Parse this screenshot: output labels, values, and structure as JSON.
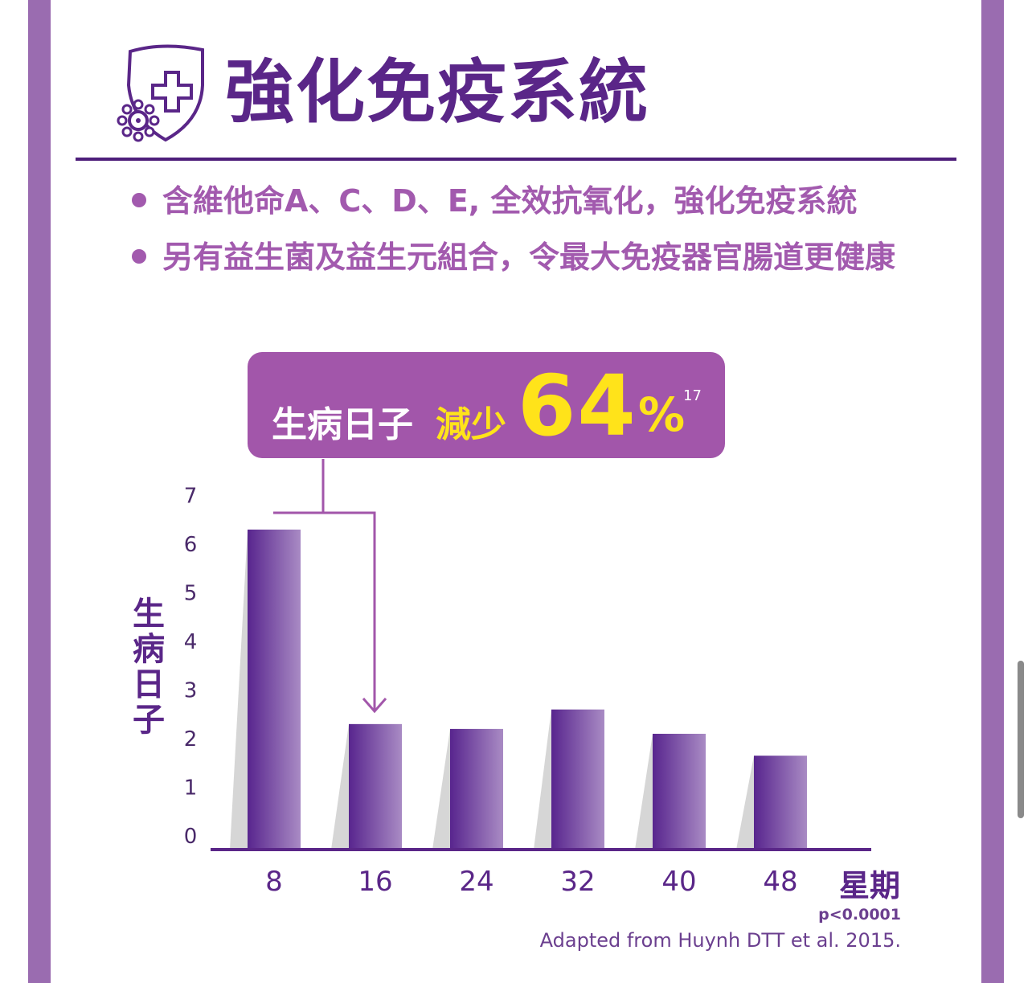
{
  "header": {
    "title": "強化免疫系統",
    "icon": "shield-virus-icon"
  },
  "bullets": [
    "含維他命A、C、D、E, 全效抗氧化，強化免疫系統",
    "另有益生菌及益生元組合，令最大免疫器官腸道更健康"
  ],
  "callout": {
    "text_white": "生病日子",
    "text_yellow": "減少",
    "number": "64",
    "percent": "%",
    "reference": "17"
  },
  "colors": {
    "frame": "#9a6cb0",
    "title": "#5a2688",
    "bullet": "#a25aae",
    "callout_bg": "#a256aa",
    "callout_highlight": "#ffe31a",
    "bar_dark": "#58258e",
    "bar_light": "#a98bc4",
    "bar_shadow": "#d6d6d6"
  },
  "chart_data": {
    "type": "bar",
    "categories": [
      "8",
      "16",
      "24",
      "32",
      "40",
      "48"
    ],
    "values": [
      6.3,
      2.3,
      2.2,
      2.6,
      2.1,
      1.65
    ],
    "ylim": [
      0,
      7
    ],
    "yticks": [
      "0",
      "1",
      "2",
      "3",
      "4",
      "5",
      "6",
      "7"
    ],
    "ylabel": "生病日子",
    "xlabel": "星期",
    "grid": false,
    "annotations": [
      "p<0.0001",
      "Adapted from Huynh DTT et al. 2015."
    ]
  }
}
